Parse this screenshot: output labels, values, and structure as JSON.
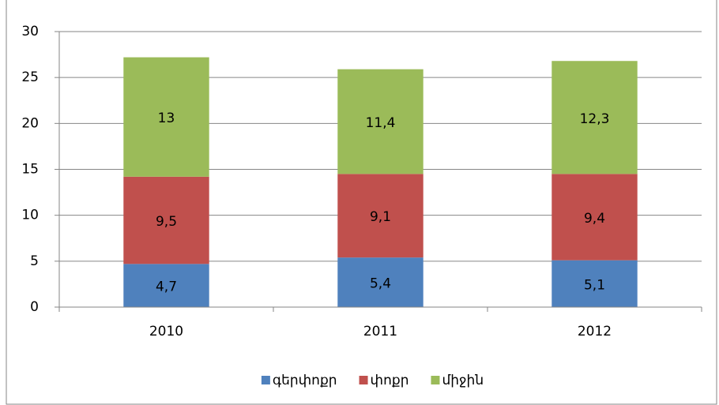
{
  "chart_data": {
    "type": "stacked_bar",
    "categories": [
      "2010",
      "2011",
      "2012"
    ],
    "series": [
      {
        "name": "գերփոքր",
        "color": "#4f81bd",
        "values": [
          4.7,
          5.4,
          5.1
        ],
        "value_labels": [
          "4,7",
          "5,4",
          "5,1"
        ]
      },
      {
        "name": "փոքր",
        "color": "#c0504d",
        "values": [
          9.5,
          9.1,
          9.4
        ],
        "value_labels": [
          "9,5",
          "9,1",
          "9,4"
        ]
      },
      {
        "name": "միջին",
        "color": "#9bbb59",
        "values": [
          13,
          11.4,
          12.3
        ],
        "value_labels": [
          "13",
          "11,4",
          "12,3"
        ]
      }
    ],
    "ylim": [
      0,
      30
    ],
    "yticks": [
      0,
      5,
      10,
      15,
      20,
      25,
      30
    ],
    "grid": true,
    "legend": "bottom"
  }
}
